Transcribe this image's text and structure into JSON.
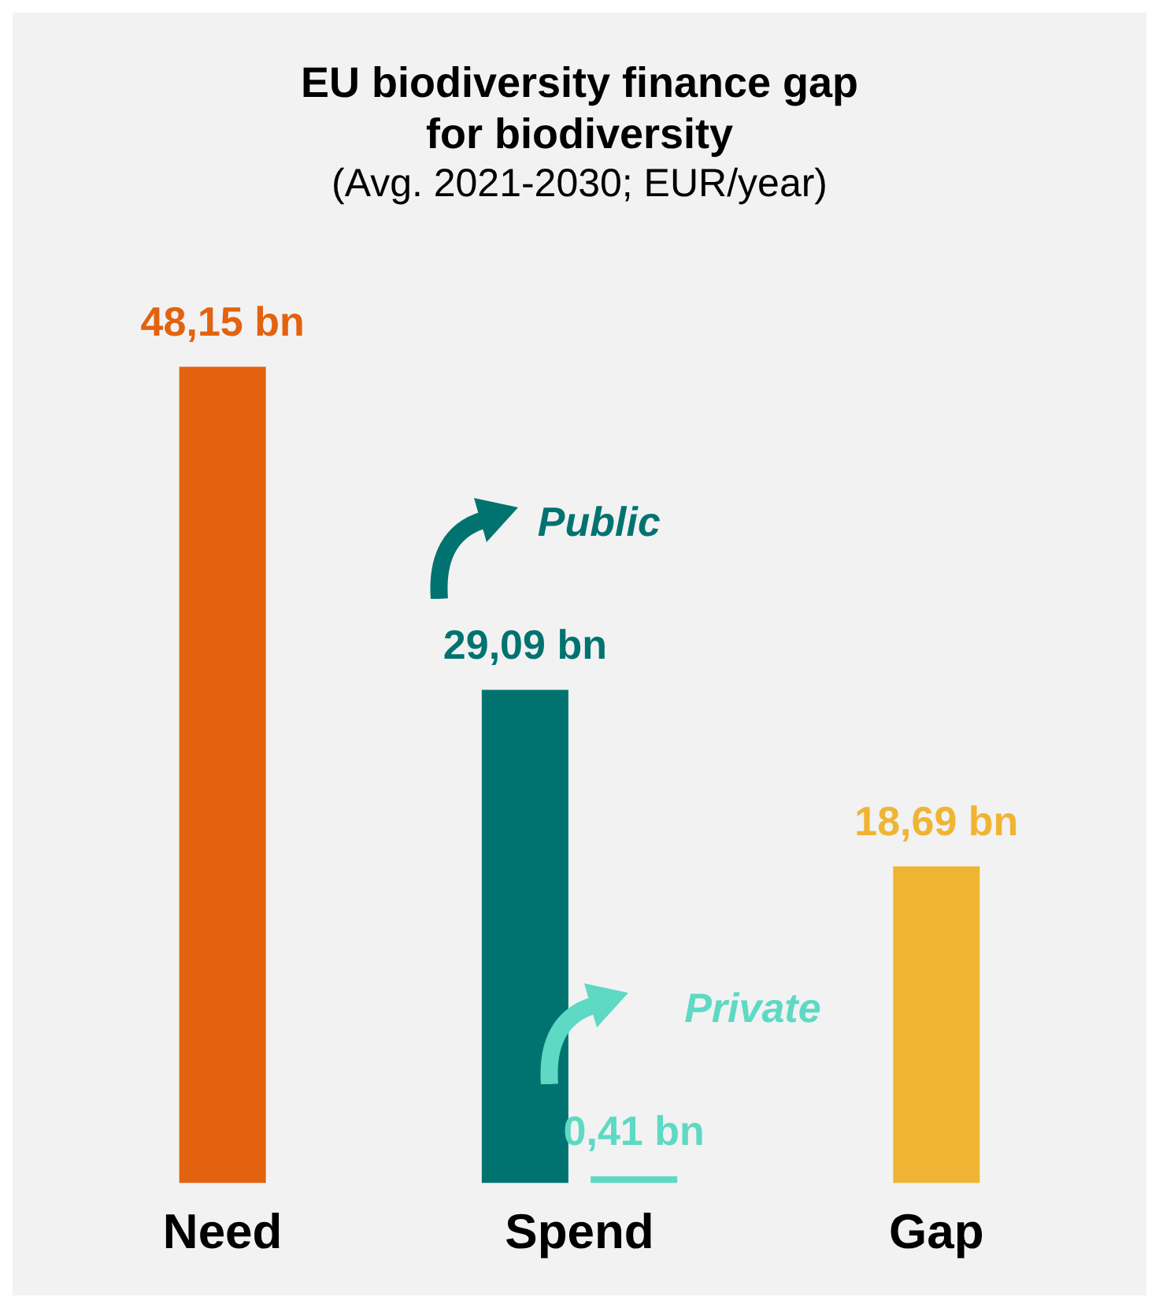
{
  "chart_data": {
    "type": "bar",
    "title": "EU biodiversity finance gap\nfor biodiversity",
    "subtitle": "(Avg. 2021-2030; EUR/year)",
    "categories": [
      "Need",
      "Spend",
      "Gap"
    ],
    "series": [
      {
        "colors": [
          "#e3620f",
          null,
          "#f0b434"
        ],
        "values": [
          48.15,
          null,
          18.69
        ],
        "value_labels": [
          "48,15 bn",
          null,
          "18,69 bn"
        ]
      },
      {
        "name": "Public",
        "color": "#007370",
        "values": [
          null,
          29.09,
          null
        ],
        "value_labels": [
          null,
          "29,09 bn",
          null
        ]
      },
      {
        "name": "Private",
        "color": "#5dd9c4",
        "values": [
          null,
          0.41,
          null
        ],
        "value_labels": [
          null,
          "0,41 bn",
          null
        ]
      }
    ],
    "grid": false,
    "legend": "right"
  }
}
